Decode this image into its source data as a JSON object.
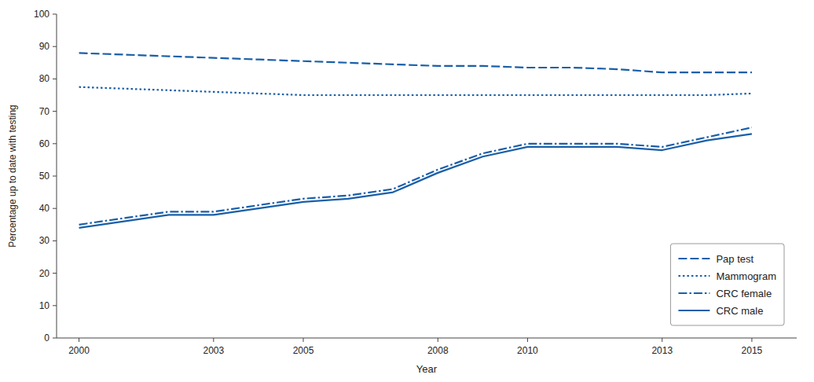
{
  "chart_data": {
    "type": "line",
    "xlabel": "Year",
    "ylabel": "Percentage up to date with testing",
    "x": [
      2000,
      2001,
      2002,
      2003,
      2004,
      2005,
      2006,
      2007,
      2008,
      2009,
      2010,
      2011,
      2012,
      2013,
      2014,
      2015
    ],
    "xlim": [
      1999.5,
      2016.0
    ],
    "xticks": [
      2000,
      2003,
      2005,
      2008,
      2010,
      2013,
      2015
    ],
    "ylim": [
      0,
      100
    ],
    "yticks": [
      0,
      10,
      20,
      30,
      40,
      50,
      60,
      70,
      80,
      90,
      100
    ],
    "grid": false,
    "legend": "lower right",
    "series": [
      {
        "name": "Pap test",
        "color": "#1a5fa8",
        "line_style": "dashed",
        "values": [
          88,
          87.5,
          87,
          86.5,
          86,
          85.5,
          85,
          84.5,
          84,
          84,
          83.5,
          83.5,
          83,
          82,
          82,
          82
        ]
      },
      {
        "name": "Mammogram",
        "color": "#1a5fa8",
        "line_style": "dotted",
        "values": [
          77.5,
          77,
          76.5,
          76,
          75.5,
          75,
          75,
          75,
          75,
          75,
          75,
          75,
          75,
          75,
          75,
          75.5
        ]
      },
      {
        "name": "CRC female",
        "color": "#1a5fa8",
        "line_style": "dashdot",
        "values": [
          35,
          37,
          39,
          39,
          41,
          43,
          44,
          46,
          52,
          57,
          60,
          60,
          60,
          59,
          62,
          65
        ]
      },
      {
        "name": "CRC male",
        "color": "#1a5fa8",
        "line_style": "solid",
        "values": [
          34,
          36,
          38,
          38,
          40,
          42,
          43,
          45,
          51,
          56,
          59,
          59,
          59,
          58,
          61,
          63
        ]
      }
    ]
  }
}
